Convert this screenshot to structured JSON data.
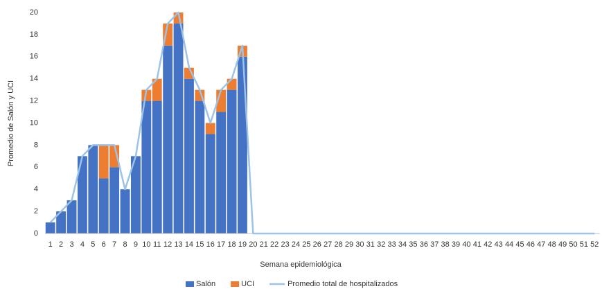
{
  "chart_data": {
    "type": "bar",
    "x_label": "Semana epidemiológica",
    "y_label": "Promedio de Salón y UCI",
    "categories": [
      "1",
      "2",
      "3",
      "4",
      "5",
      "6",
      "7",
      "8",
      "9",
      "10",
      "11",
      "12",
      "13",
      "14",
      "15",
      "16",
      "17",
      "18",
      "19",
      "20",
      "21",
      "22",
      "23",
      "24",
      "25",
      "26",
      "27",
      "28",
      "29",
      "30",
      "31",
      "32",
      "33",
      "34",
      "35",
      "36",
      "37",
      "38",
      "39",
      "40",
      "41",
      "42",
      "43",
      "44",
      "45",
      "46",
      "47",
      "48",
      "49",
      "50",
      "51",
      "52"
    ],
    "series": [
      {
        "name": "Salón",
        "color": "#4472c4",
        "values": [
          1,
          2,
          3,
          7,
          8,
          5,
          6,
          4,
          7,
          12,
          12,
          17,
          19,
          14,
          12,
          9,
          11,
          13,
          16,
          0,
          0,
          0,
          0,
          0,
          0,
          0,
          0,
          0,
          0,
          0,
          0,
          0,
          0,
          0,
          0,
          0,
          0,
          0,
          0,
          0,
          0,
          0,
          0,
          0,
          0,
          0,
          0,
          0,
          0,
          0,
          0,
          0
        ]
      },
      {
        "name": "UCI",
        "color": "#ed7d31",
        "values": [
          0,
          0,
          0,
          0,
          0,
          3,
          2,
          0,
          0,
          1,
          2,
          2,
          1,
          1,
          1,
          1,
          2,
          1,
          1,
          0,
          0,
          0,
          0,
          0,
          0,
          0,
          0,
          0,
          0,
          0,
          0,
          0,
          0,
          0,
          0,
          0,
          0,
          0,
          0,
          0,
          0,
          0,
          0,
          0,
          0,
          0,
          0,
          0,
          0,
          0,
          0,
          0
        ]
      },
      {
        "name": "Promedio total de hospitalizados",
        "type": "line",
        "color": "#9dc3e6",
        "values": [
          1,
          2,
          3,
          7,
          8,
          8,
          8,
          4,
          7,
          13,
          14,
          19,
          20,
          15,
          13,
          10,
          13,
          14,
          17,
          0,
          0,
          0,
          0,
          0,
          0,
          0,
          0,
          0,
          0,
          0,
          0,
          0,
          0,
          0,
          0,
          0,
          0,
          0,
          0,
          0,
          0,
          0,
          0,
          0,
          0,
          0,
          0,
          0,
          0,
          0,
          0,
          0
        ]
      }
    ],
    "stacked": true,
    "ylim": [
      0,
      20
    ],
    "yticks": [
      0,
      2,
      4,
      6,
      8,
      10,
      12,
      14,
      16,
      18,
      20
    ],
    "grid": false,
    "legend": "bottom"
  }
}
